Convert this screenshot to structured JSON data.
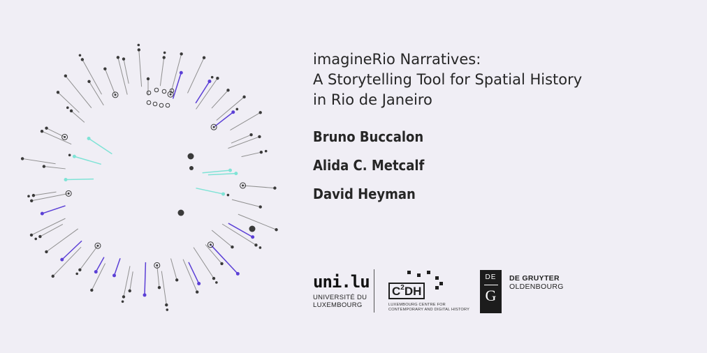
{
  "title": {
    "line1": "imagineRio Narratives:",
    "line2": "A Storytelling Tool for Spatial History",
    "line3": "in Rio de Janeiro"
  },
  "authors": [
    "Bruno Buccalon",
    "Alida C. Metcalf",
    "David Heyman"
  ],
  "logos": {
    "uni": {
      "mark": "uni.lu",
      "line1": "UNIVERSITÉ DU",
      "line2": "LUXEMBOURG"
    },
    "c2dh": {
      "mark": "C",
      "sup": "2",
      "rest": "DH",
      "line1": "LUXEMBOURG CENTRE FOR",
      "line2": "CONTEMPORARY AND DIGITAL HISTORY"
    },
    "degruyter": {
      "box_top": "DE",
      "box_bottom": "G",
      "line1": "DE GRUYTER",
      "line2": "OLDENBOURG"
    }
  },
  "colors": {
    "background": "#f0eef5",
    "gray": "#8f8f8f",
    "purple": "#5b3fd6",
    "teal": "#7fe3d6",
    "dark": "#3a3a3a"
  }
}
